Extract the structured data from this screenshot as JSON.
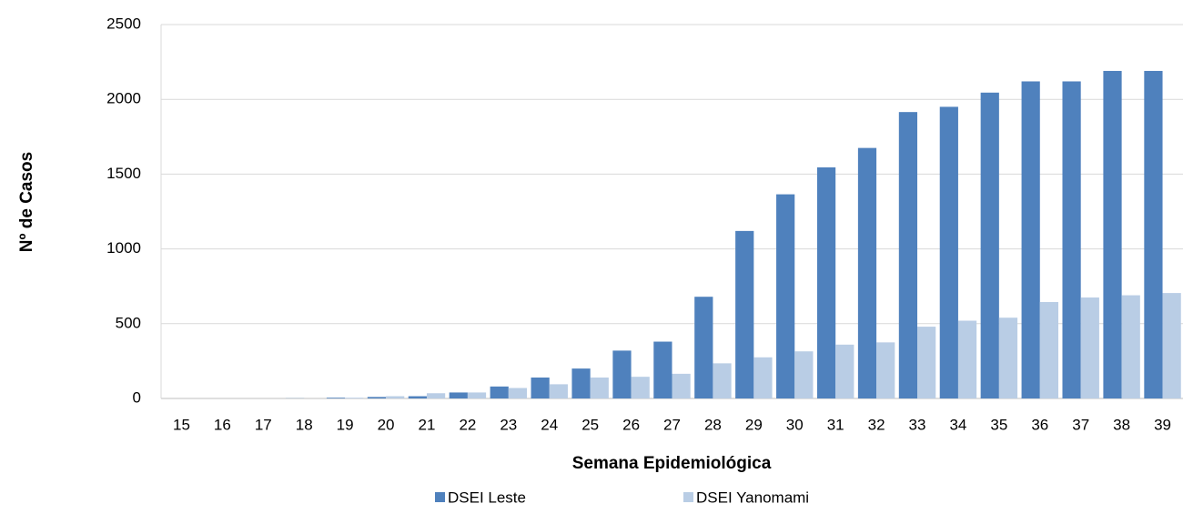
{
  "chart_data": {
    "type": "bar",
    "x_label": "Semana Epidemiológica",
    "y_label": "Nº de Casos",
    "categories": [
      "15",
      "16",
      "17",
      "18",
      "19",
      "20",
      "21",
      "22",
      "23",
      "24",
      "25",
      "26",
      "27",
      "28",
      "29",
      "30",
      "31",
      "32",
      "33",
      "34",
      "35",
      "36",
      "37",
      "38",
      "39"
    ],
    "series": [
      {
        "name": "DSEI Leste",
        "color": "#4f81bd",
        "values": [
          0,
          0,
          0,
          1,
          5,
          10,
          15,
          40,
          80,
          140,
          200,
          320,
          380,
          680,
          1120,
          1365,
          1545,
          1675,
          1915,
          1950,
          2045,
          2120,
          2120,
          2190,
          2190
        ]
      },
      {
        "name": "DSEI Yanomami",
        "color": "#b9cde5",
        "values": [
          0,
          0,
          0,
          0,
          5,
          15,
          35,
          40,
          70,
          95,
          140,
          145,
          165,
          235,
          275,
          315,
          360,
          375,
          480,
          520,
          540,
          645,
          675,
          690,
          705
        ]
      }
    ],
    "ylim": [
      0,
      2500
    ],
    "yticks": [
      0,
      500,
      1000,
      1500,
      2000,
      2500
    ],
    "grid": true,
    "legend": "bottom"
  }
}
